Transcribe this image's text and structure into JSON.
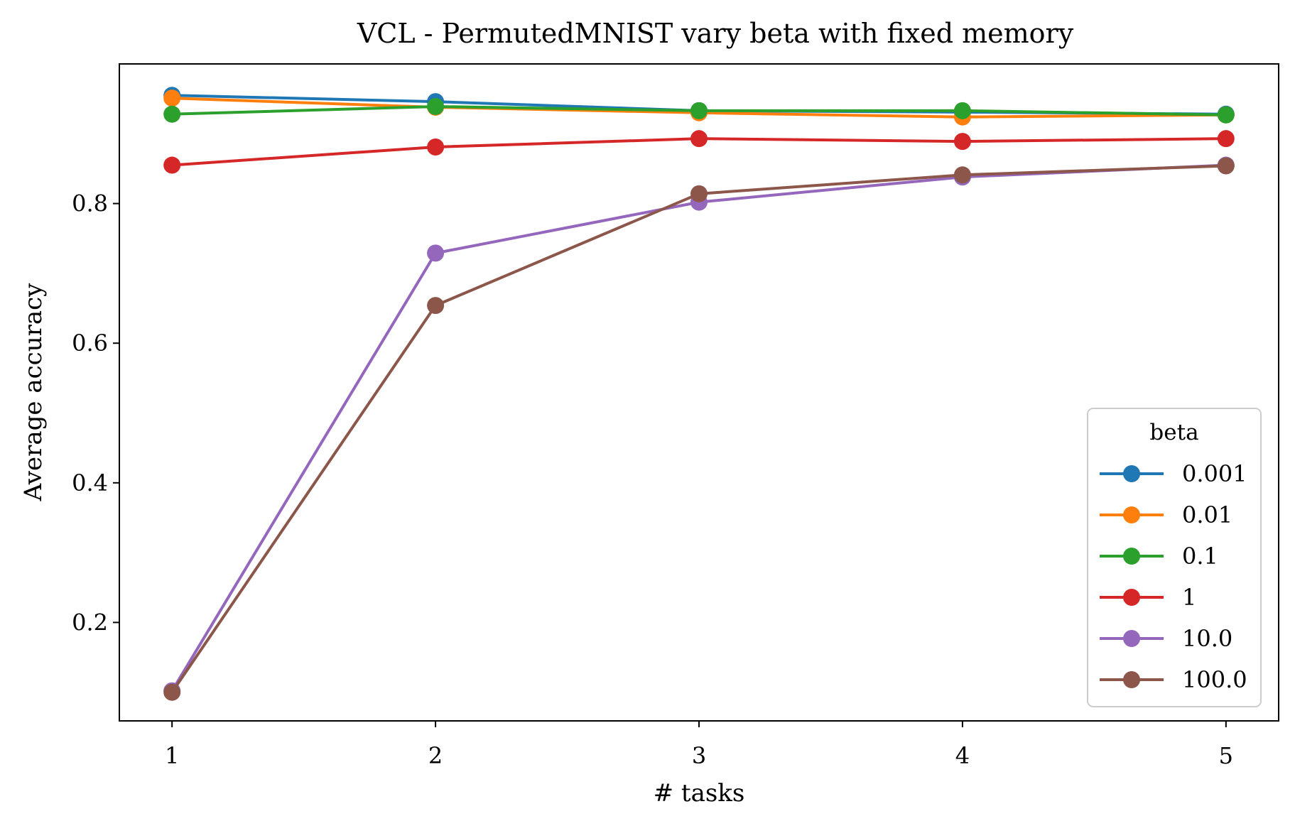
{
  "chart_data": {
    "type": "line",
    "title": "VCL - PermutedMNIST vary beta with fixed memory",
    "xlabel": "# tasks",
    "ylabel": "Average accuracy",
    "x": [
      1,
      2,
      3,
      4,
      5
    ],
    "xticks": [
      "1",
      "2",
      "3",
      "4",
      "5"
    ],
    "yticks": [
      0.2,
      0.4,
      0.6,
      0.8
    ],
    "ytick_labels": [
      "0.2",
      "0.4",
      "0.6",
      "0.8"
    ],
    "xlim": [
      0.8,
      5.2
    ],
    "ylim": [
      0.059,
      1.0
    ],
    "grid": false,
    "legend": {
      "title": "beta",
      "placement": "lower-right"
    },
    "series": [
      {
        "name": "0.001",
        "color": "#1f77b4",
        "values": [
          0.955,
          0.946,
          0.933,
          0.931,
          0.928
        ]
      },
      {
        "name": "0.01",
        "color": "#ff7f0e",
        "values": [
          0.951,
          0.938,
          0.93,
          0.924,
          0.927
        ]
      },
      {
        "name": "0.1",
        "color": "#2ca02c",
        "values": [
          0.928,
          0.939,
          0.933,
          0.933,
          0.927
        ]
      },
      {
        "name": "1",
        "color": "#d62728",
        "values": [
          0.855,
          0.881,
          0.893,
          0.889,
          0.893
        ]
      },
      {
        "name": "10.0",
        "color": "#9467bd",
        "values": [
          0.102,
          0.729,
          0.802,
          0.838,
          0.855
        ]
      },
      {
        "name": "100.0",
        "color": "#8c564b",
        "values": [
          0.1,
          0.654,
          0.814,
          0.841,
          0.854
        ]
      }
    ]
  }
}
